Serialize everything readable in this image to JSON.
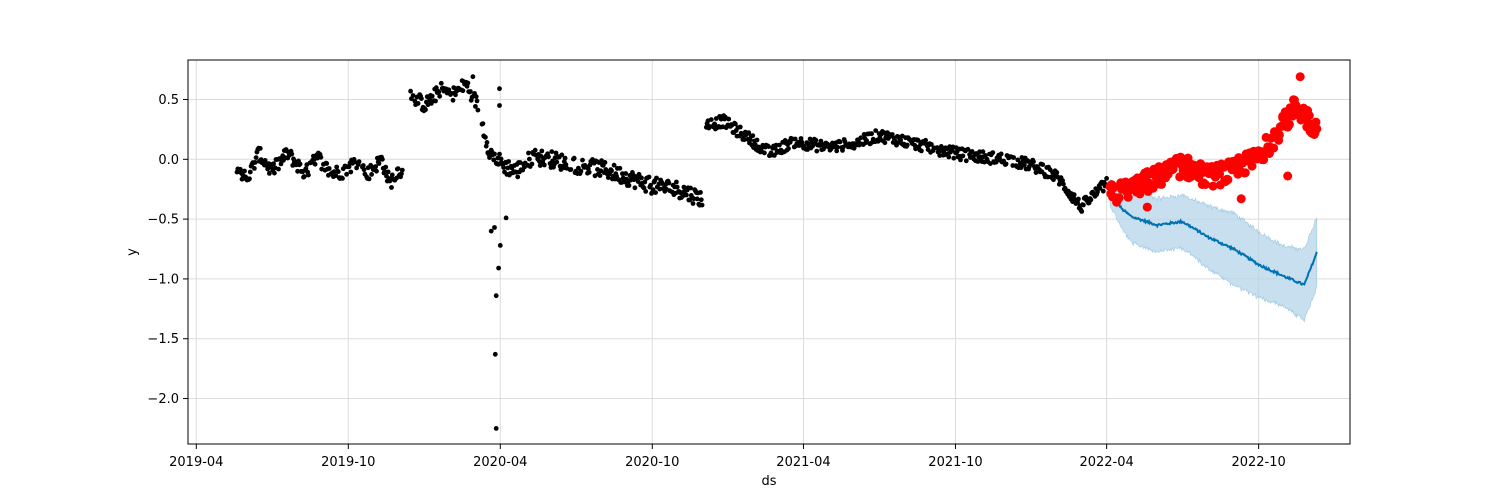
{
  "chart_data": {
    "type": "scatter",
    "title": "",
    "xlabel": "ds",
    "ylabel": "y",
    "xlim": [
      "2019-03-22",
      "2023-01-19"
    ],
    "ylim": [
      -2.38,
      0.83
    ],
    "x_ticks": [
      "2019-04",
      "2019-10",
      "2020-04",
      "2020-10",
      "2021-04",
      "2021-10",
      "2022-04",
      "2022-10"
    ],
    "y_ticks": [
      0.5,
      0.0,
      -0.5,
      -1.0,
      -1.5,
      -2.0
    ],
    "y_tick_labels": [
      "0.5",
      "0.0",
      "−0.5",
      "−1.0",
      "−1.5",
      "−2.0"
    ],
    "grid": true,
    "colors": {
      "observed": "#000000",
      "actual_future": "#ff0000",
      "forecast": "#0072b2",
      "interval": "#b4d4e8"
    },
    "observed_anchors": [
      [
        "2019-05-20",
        -0.05
      ],
      [
        "2019-06-01",
        -0.18
      ],
      [
        "2019-06-15",
        0.05
      ],
      [
        "2019-07-01",
        -0.1
      ],
      [
        "2019-07-20",
        0.05
      ],
      [
        "2019-08-10",
        -0.12
      ],
      [
        "2019-08-25",
        0.02
      ],
      [
        "2019-09-10",
        -0.12
      ],
      [
        "2019-09-25",
        -0.1
      ],
      [
        "2019-10-10",
        -0.02
      ],
      [
        "2019-10-25",
        -0.12
      ],
      [
        "2019-11-10",
        0.0
      ],
      [
        "2019-11-20",
        -0.2
      ],
      [
        "2019-12-01",
        -0.08
      ],
      [
        "2019-12-05",
        -0.12
      ]
    ],
    "observed_segments": [
      {
        "from": "2019-05-20",
        "to": "2019-12-05",
        "anchors": "observed_anchors",
        "scatter": 0.06
      },
      {
        "from": "2019-12-15",
        "to": "2020-03-05",
        "anchors": "seg2",
        "scatter": 0.06
      },
      {
        "from": "2020-03-10",
        "to": "2020-11-30",
        "anchors": "seg3",
        "scatter": 0.07
      },
      {
        "from": "2020-12-05",
        "to": "2022-04-01",
        "anchors": "seg4",
        "scatter": 0.05
      }
    ],
    "seg2": [
      [
        "2019-12-15",
        0.55
      ],
      [
        "2020-01-01",
        0.45
      ],
      [
        "2020-01-20",
        0.58
      ],
      [
        "2020-02-05",
        0.55
      ],
      [
        "2020-02-20",
        0.63
      ],
      [
        "2020-03-05",
        0.45
      ]
    ],
    "seg3": [
      [
        "2020-03-10",
        0.3
      ],
      [
        "2020-03-20",
        0.05
      ],
      [
        "2020-04-05",
        -0.05
      ],
      [
        "2020-04-20",
        -0.1
      ],
      [
        "2020-05-10",
        0.02
      ],
      [
        "2020-06-01",
        0.0
      ],
      [
        "2020-07-01",
        -0.05
      ],
      [
        "2020-08-01",
        -0.08
      ],
      [
        "2020-09-01",
        -0.15
      ],
      [
        "2020-10-01",
        -0.22
      ],
      [
        "2020-11-01",
        -0.25
      ],
      [
        "2020-11-30",
        -0.33
      ]
    ],
    "seg4": [
      [
        "2020-12-05",
        0.28
      ],
      [
        "2020-12-25",
        0.32
      ],
      [
        "2021-01-20",
        0.2
      ],
      [
        "2021-02-20",
        0.05
      ],
      [
        "2021-03-20",
        0.15
      ],
      [
        "2021-05-01",
        0.1
      ],
      [
        "2021-06-01",
        0.13
      ],
      [
        "2021-07-01",
        0.2
      ],
      [
        "2021-08-01",
        0.15
      ],
      [
        "2021-09-01",
        0.1
      ],
      [
        "2021-10-01",
        0.05
      ],
      [
        "2021-11-01",
        0.02
      ],
      [
        "2021-12-01",
        0.0
      ],
      [
        "2022-01-01",
        -0.05
      ],
      [
        "2022-02-01",
        -0.15
      ],
      [
        "2022-03-01",
        -0.4
      ],
      [
        "2022-04-01",
        -0.2
      ]
    ],
    "observed_outliers": [
      [
        "2020-03-21",
        -0.6
      ],
      [
        "2020-03-25",
        -0.57
      ],
      [
        "2020-03-27",
        -1.14
      ],
      [
        "2020-03-26",
        -1.63
      ],
      [
        "2020-03-27",
        -2.25
      ],
      [
        "2020-03-30",
        -0.91
      ],
      [
        "2020-04-01",
        -0.72
      ],
      [
        "2020-04-08",
        -0.49
      ],
      [
        "2020-03-31",
        0.59
      ],
      [
        "2020-03-31",
        0.45
      ],
      [
        "2020-02-28",
        0.69
      ]
    ],
    "actual_future_anchors": [
      [
        "2022-04-05",
        -0.3
      ],
      [
        "2022-05-01",
        -0.25
      ],
      [
        "2022-06-01",
        -0.15
      ],
      [
        "2022-07-01",
        -0.05
      ],
      [
        "2022-08-01",
        -0.15
      ],
      [
        "2022-09-01",
        -0.1
      ],
      [
        "2022-10-01",
        0.02
      ],
      [
        "2022-11-01",
        0.3
      ],
      [
        "2022-11-15",
        0.45
      ],
      [
        "2022-12-10",
        0.25
      ]
    ],
    "actual_future_range": [
      "2022-04-05",
      "2022-12-10"
    ],
    "forecast_anchors": [
      [
        "2022-04-05",
        -0.28
      ],
      [
        "2022-04-20",
        -0.42
      ],
      [
        "2022-05-01",
        -0.48
      ],
      [
        "2022-06-01",
        -0.55
      ],
      [
        "2022-07-01",
        -0.52
      ],
      [
        "2022-08-01",
        -0.65
      ],
      [
        "2022-09-01",
        -0.75
      ],
      [
        "2022-10-01",
        -0.88
      ],
      [
        "2022-11-01",
        -0.98
      ],
      [
        "2022-11-25",
        -1.05
      ],
      [
        "2022-12-10",
        -0.78
      ]
    ],
    "interval_halfwidth": [
      [
        "2022-04-05",
        0.1
      ],
      [
        "2022-05-01",
        0.22
      ],
      [
        "2022-07-01",
        0.22
      ],
      [
        "2022-09-01",
        0.3
      ],
      [
        "2022-11-01",
        0.25
      ],
      [
        "2022-11-25",
        0.3
      ],
      [
        "2022-12-10",
        0.3
      ]
    ]
  }
}
